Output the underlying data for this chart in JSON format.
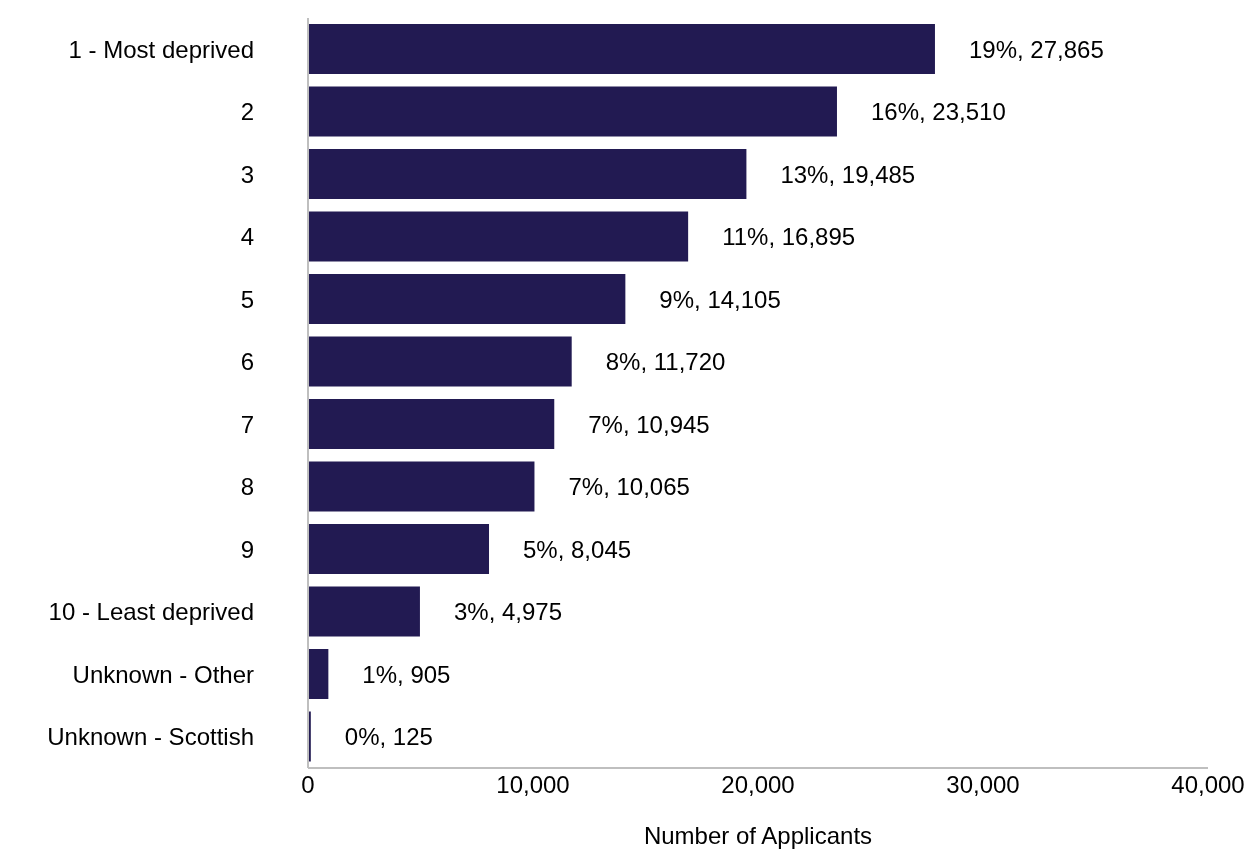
{
  "chart_data": {
    "type": "bar",
    "orientation": "horizontal",
    "xlabel": "Number of Applicants",
    "categories": [
      "1 - Most deprived",
      "2",
      "3",
      "4",
      "5",
      "6",
      "7",
      "8",
      "9",
      "10 - Least deprived",
      "Unknown - Other",
      "Unknown - Scottish"
    ],
    "values": [
      27865,
      23510,
      19485,
      16895,
      14105,
      11720,
      10945,
      10065,
      8045,
      4975,
      905,
      125
    ],
    "value_labels": [
      "19%, 27,865",
      "16%, 23,510",
      "13%, 19,485",
      "11%, 16,895",
      "9%, 14,105",
      "8%, 11,720",
      "7%, 10,945",
      "7%, 10,065",
      "5%, 8,045",
      "3%, 4,975",
      "1%, 905",
      "0%, 125"
    ],
    "color": "#221a52",
    "xlim": [
      0,
      40000
    ],
    "xticks": [
      0,
      {
        "value": 10000,
        "label": "10,000"
      },
      {
        "value": 20000,
        "label": "20,000"
      },
      {
        "value": 30000,
        "label": "30,000"
      },
      {
        "value": 40000,
        "label": "40,000"
      }
    ],
    "grid": false,
    "legend": false
  }
}
